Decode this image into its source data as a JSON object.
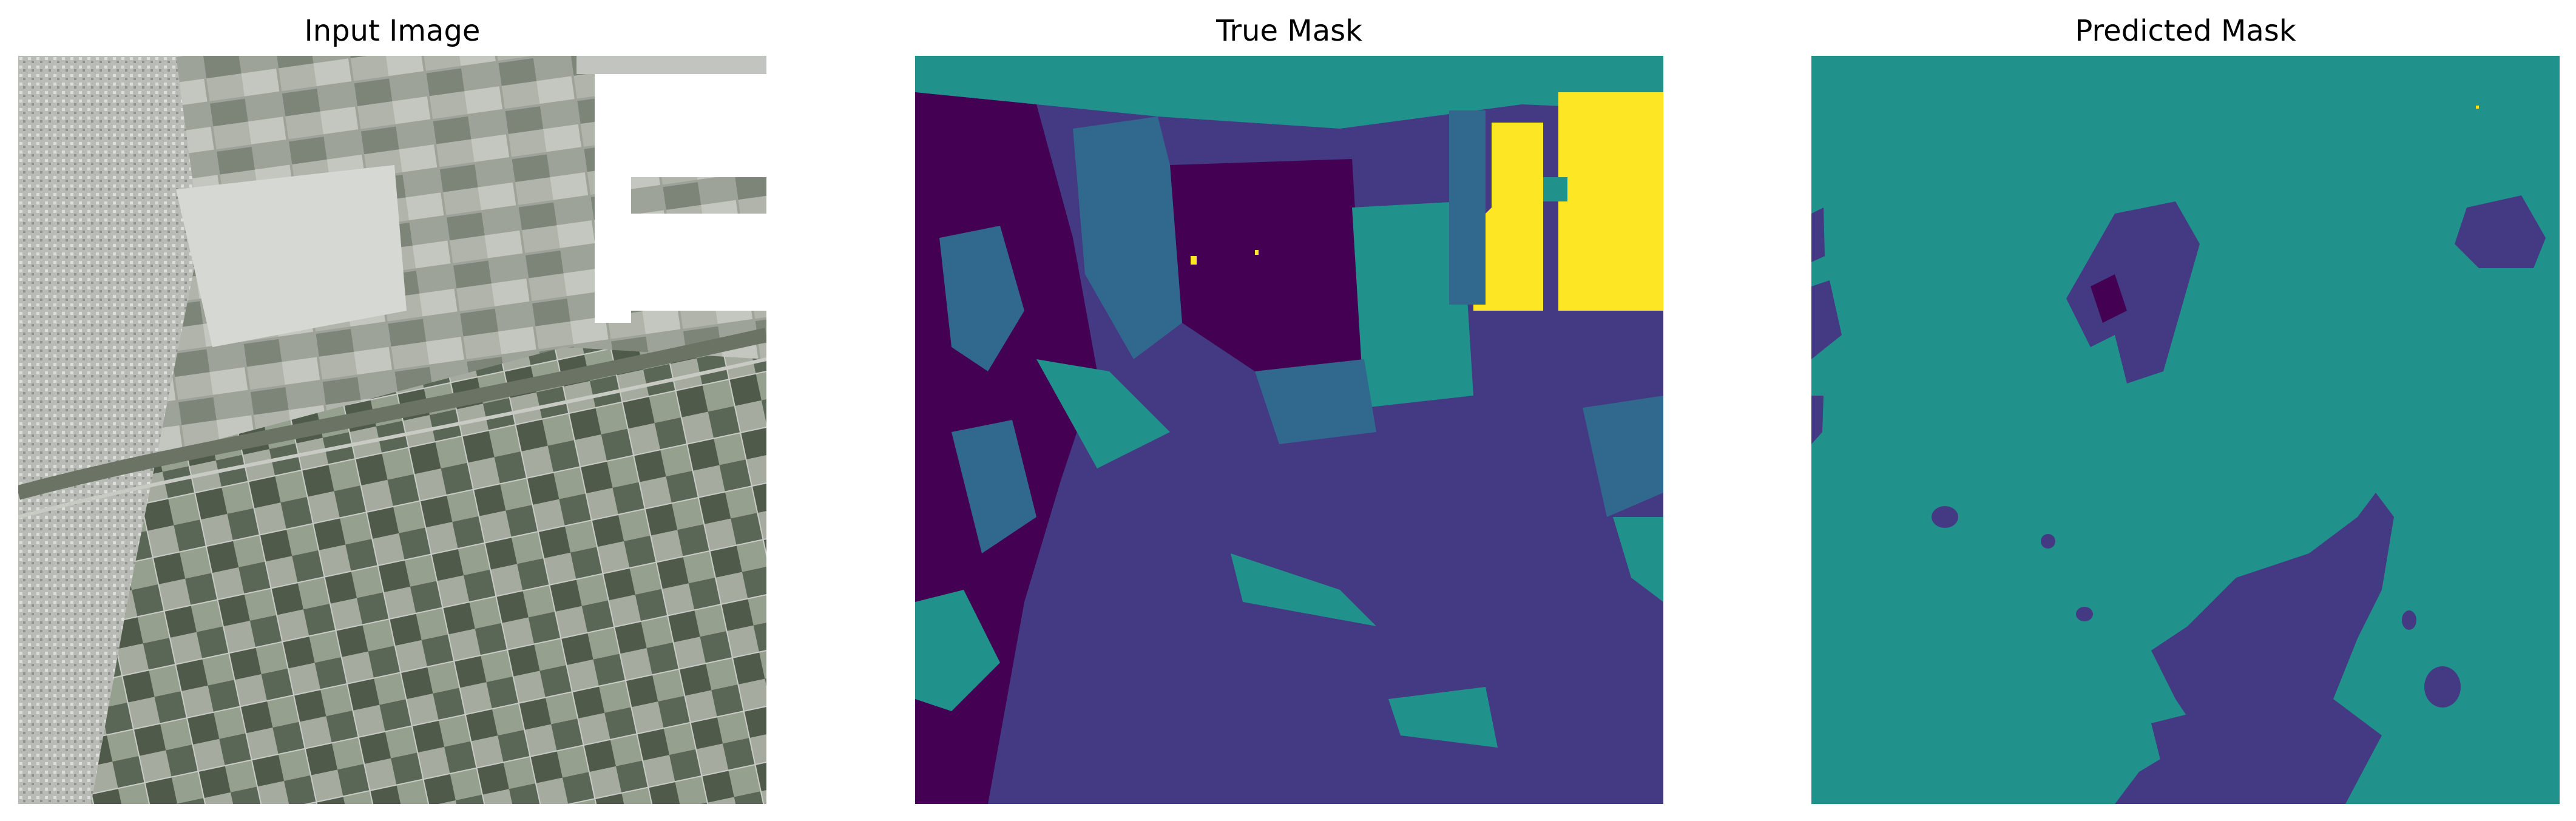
{
  "figure": {
    "panels": [
      {
        "title": "Input Image",
        "content": "satellite-rgb"
      },
      {
        "title": "True Mask",
        "content": "segmentation-mask"
      },
      {
        "title": "Predicted Mask",
        "content": "segmentation-mask"
      }
    ],
    "mask_palette": {
      "class_0": "#440154",
      "class_1": "#443983",
      "class_2": "#31688e",
      "class_3": "#21918c",
      "class_4": "#fde725"
    },
    "input_palette": {
      "field_light": "#c9ccc6",
      "field_mid": "#8d9488",
      "field_dark": "#4e5a4a",
      "urban": "#b7bab4",
      "water": "#ffffff"
    }
  }
}
